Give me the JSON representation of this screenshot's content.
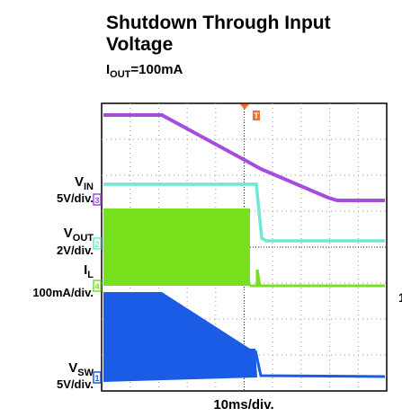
{
  "title": [
    "Shutdown Through Input",
    "Voltage"
  ],
  "subtitle": {
    "main": "I",
    "sub": "OUT",
    "rest": "=100mA"
  },
  "channels": [
    {
      "name": "V",
      "sub": "IN",
      "scale": "5V/div.",
      "marker": "3"
    },
    {
      "name": "V",
      "sub": "OUT",
      "scale": "2V/div.",
      "marker": "2"
    },
    {
      "name": "I",
      "sub": "L",
      "scale": "100mA/div.",
      "marker": "4"
    },
    {
      "name": "V",
      "sub": "SW",
      "scale": "5V/div.",
      "marker": "1"
    }
  ],
  "trigger": "T",
  "edge_label": "1",
  "time_scale": "10ms/div."
}
